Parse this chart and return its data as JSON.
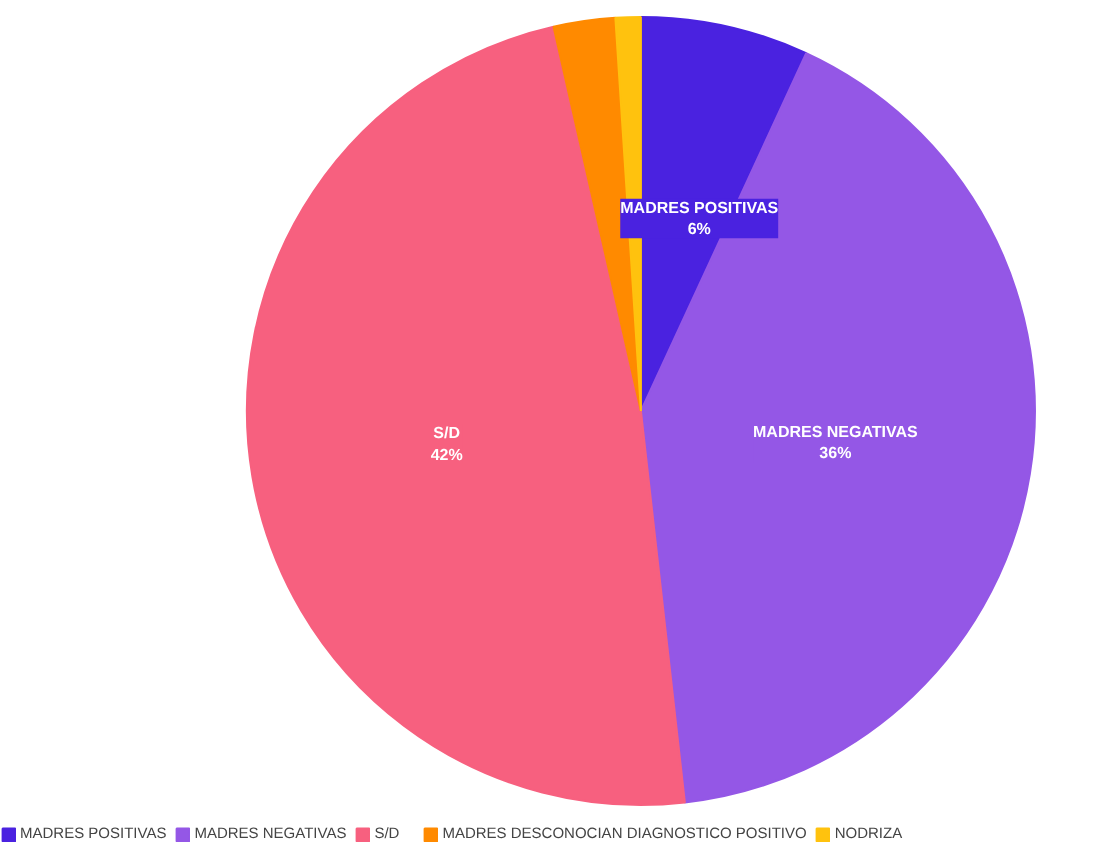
{
  "chart_data": {
    "type": "pie",
    "categories": [
      "MADRES POSITIVAS",
      "MADRES NEGATIVAS",
      "S/D",
      "MADRES DESCONOCIAN DIAGNOSTICO POSITIVO",
      "NODRIZA"
    ],
    "values": [
      6,
      36,
      42,
      2.2,
      0.9
    ],
    "colors": [
      "#4a22e0",
      "#9457e6",
      "#f7607f",
      "#ff8a00",
      "#ffc20e"
    ],
    "value_labels": [
      "6%",
      "36%",
      "42%",
      null,
      null
    ],
    "legend": "bottom"
  }
}
